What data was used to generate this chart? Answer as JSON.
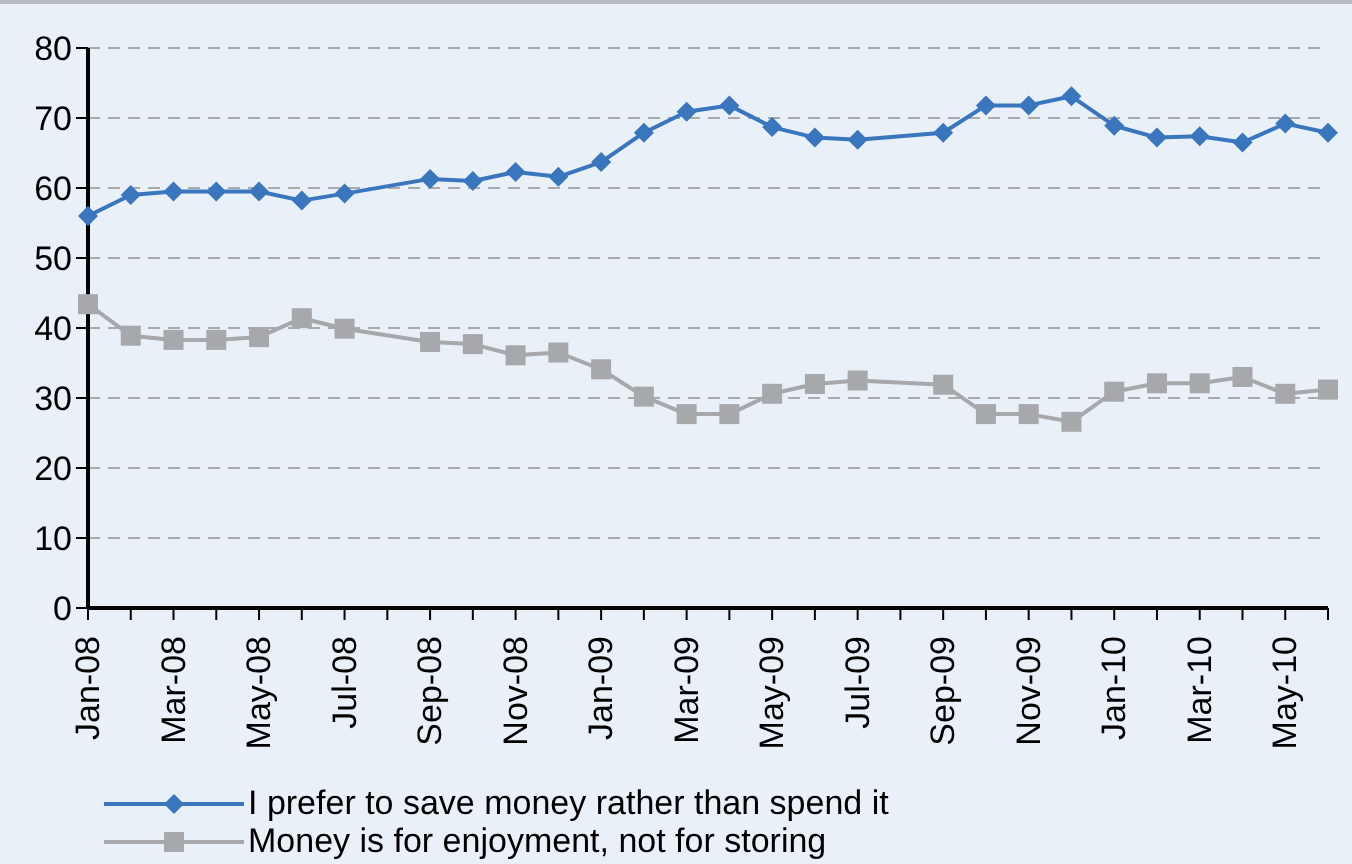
{
  "chart_data": {
    "type": "line",
    "categories": [
      "Jan-08",
      null,
      "Mar-08",
      null,
      "May-08",
      null,
      "Jul-08",
      null,
      "Sep-08",
      null,
      "Nov-08",
      null,
      "Jan-09",
      null,
      "Mar-09",
      null,
      "May-09",
      null,
      "Jul-09",
      null,
      "Sep-09",
      null,
      "Nov-09",
      null,
      "Jan-10",
      null,
      "Mar-10",
      null,
      "May-10",
      null
    ],
    "series": [
      {
        "name": "I prefer to save money rather than spend it",
        "color": "#3a76bd",
        "marker": "diamond",
        "line_style": "solid",
        "values": [
          56,
          59,
          59.5,
          59.5,
          59.5,
          58.2,
          59.2,
          null,
          61.3,
          61,
          62.3,
          61.6,
          63.7,
          67.9,
          70.9,
          71.8,
          68.7,
          67.2,
          66.9,
          null,
          67.9,
          71.8,
          71.8,
          73.1,
          68.9,
          67.2,
          67.4,
          66.5,
          69.2,
          67.9
        ]
      },
      {
        "name": "Money is for enjoyment, not for storing",
        "color": "#a6a8ab",
        "marker": "square",
        "line_style": "solid",
        "values": [
          43.4,
          38.9,
          38.3,
          38.3,
          38.7,
          41.4,
          39.9,
          null,
          38,
          37.7,
          36.1,
          36.5,
          34.1,
          30.2,
          27.7,
          27.7,
          30.6,
          32,
          32.5,
          null,
          31.9,
          27.7,
          27.7,
          26.6,
          30.9,
          32.1,
          32.1,
          33,
          30.6,
          31.2
        ]
      }
    ],
    "ylim": [
      0,
      80
    ],
    "yticks": [
      0,
      10,
      20,
      30,
      40,
      50,
      60,
      70,
      80
    ],
    "grid": "y",
    "legend": "bottom"
  }
}
